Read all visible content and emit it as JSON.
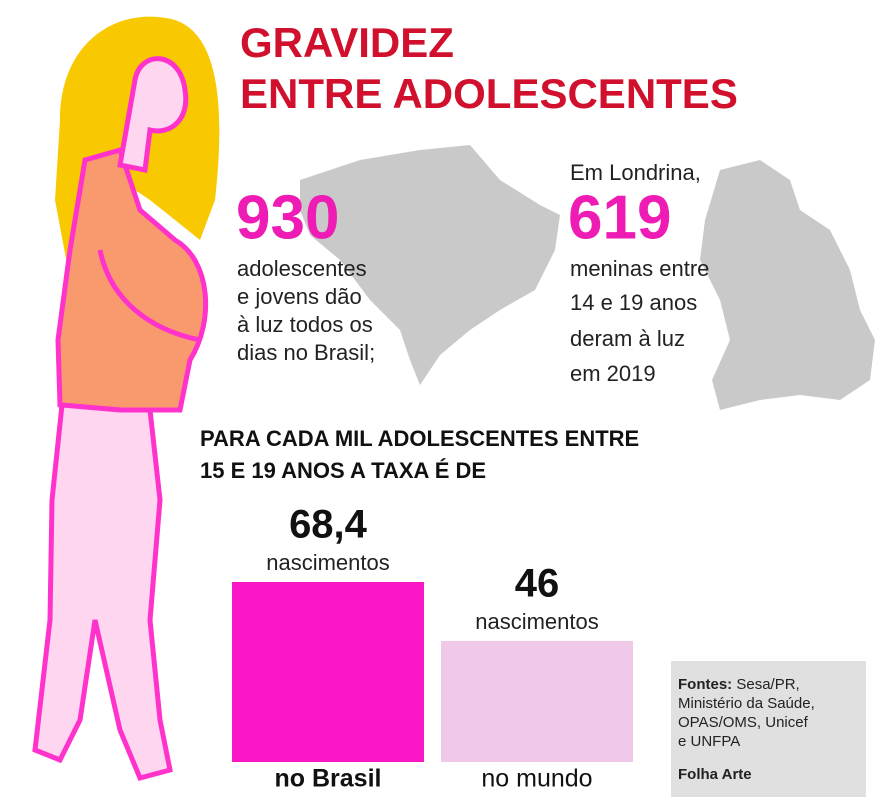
{
  "header": {
    "title": [
      "GRAVIDEZ",
      "ENTRE ADOLESCENTES"
    ]
  },
  "stats": [
    {
      "intro": null,
      "number": "930",
      "text": [
        "adolescentes",
        "e jovens dão",
        "à luz todos os",
        "dias no Brasil;"
      ]
    },
    {
      "intro": "Em Londrina,",
      "number": "619",
      "text": [
        "meninas entre",
        "14 e 19 anos",
        "deram à luz",
        "em 2019"
      ]
    }
  ],
  "chart_data": {
    "type": "bar",
    "title": [
      "PARA CADA MIL ADOLESCENTES ENTRE",
      "15 E 19 ANOS A TAXA É DE"
    ],
    "categories": [
      "no Brasil",
      "no mundo"
    ],
    "values": [
      68.4,
      46
    ],
    "value_labels": [
      "68,4",
      "46"
    ],
    "value_unit": "nascimentos",
    "colors": [
      "#fc17c6",
      "#f0c8e8"
    ]
  },
  "sources": {
    "label": "Fontes:",
    "lines": [
      "Sesa/PR,",
      "Ministério da Saúde,",
      "OPAS/OMS, Unicef",
      "e UNFPA"
    ],
    "credit": "Folha Arte"
  }
}
